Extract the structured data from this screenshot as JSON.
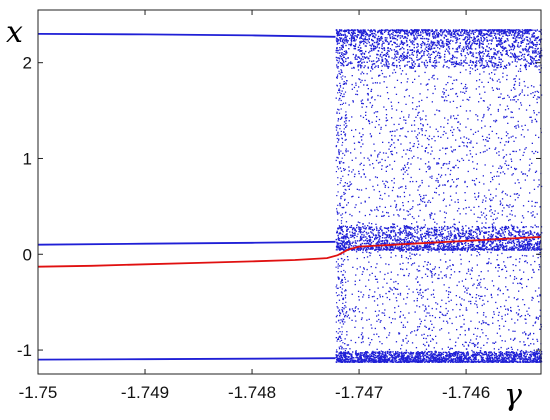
{
  "chart_data": {
    "type": "scatter",
    "title": "",
    "xlabel": "γ",
    "ylabel": "x",
    "xlim": [
      -1.75,
      -1.7453
    ],
    "ylim": [
      -1.25,
      2.55
    ],
    "xticks": [
      -1.75,
      -1.749,
      -1.748,
      -1.747,
      -1.746
    ],
    "xtick_labels": [
      "-1.75",
      "-1.749",
      "-1.748",
      "-1.747",
      "-1.746"
    ],
    "yticks": [
      -1,
      0,
      1,
      2
    ],
    "ytick_labels": [
      "-1",
      "0",
      "1",
      "2"
    ],
    "grid": false,
    "transition_gamma": -1.74722,
    "series": [
      {
        "kind": "periodic-branches",
        "color": "#1f1fd6",
        "branches": [
          {
            "x": [
              -1.75,
              -1.749,
              -1.748,
              -1.74722
            ],
            "y": [
              2.3,
              2.295,
              2.285,
              2.27
            ]
          },
          {
            "x": [
              -1.75,
              -1.749,
              -1.748,
              -1.74722
            ],
            "y": [
              0.1,
              0.11,
              0.12,
              0.13
            ]
          },
          {
            "x": [
              -1.75,
              -1.749,
              -1.748,
              -1.74722
            ],
            "y": [
              -1.1,
              -1.095,
              -1.09,
              -1.085
            ]
          }
        ]
      },
      {
        "kind": "chaotic-region",
        "color": "#1f1fd6",
        "x_range": [
          -1.74722,
          -1.7453
        ],
        "dense_bands": [
          [
            1.95,
            2.35
          ],
          [
            0.05,
            0.3
          ],
          [
            -1.12,
            -0.8
          ]
        ],
        "y_range": [
          -1.12,
          2.35
        ]
      },
      {
        "kind": "line",
        "color": "#e01010",
        "x": [
          -1.75,
          -1.7495,
          -1.749,
          -1.7485,
          -1.748,
          -1.7476,
          -1.7473,
          -1.7472,
          -1.7471,
          -1.747,
          -1.7465,
          -1.746,
          -1.7455,
          -1.7453
        ],
        "y": [
          -0.13,
          -0.12,
          -0.105,
          -0.09,
          -0.075,
          -0.06,
          -0.04,
          -0.01,
          0.05,
          0.08,
          0.11,
          0.14,
          0.17,
          0.18
        ]
      }
    ]
  }
}
